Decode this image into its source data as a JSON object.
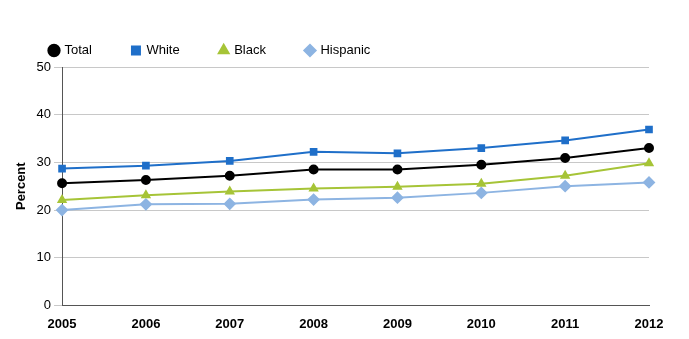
{
  "chart_data": {
    "type": "line",
    "y_label": "Percent",
    "categories": [
      "2005",
      "2006",
      "2007",
      "2008",
      "2009",
      "2010",
      "2011",
      "2012"
    ],
    "series": [
      {
        "name": "Total",
        "color": "#000000",
        "marker": "circle",
        "values": [
          25.6,
          26.3,
          27.2,
          28.5,
          28.5,
          29.5,
          30.9,
          33.0
        ]
      },
      {
        "name": "White",
        "color": "#1f6fc9",
        "marker": "square",
        "values": [
          28.7,
          29.3,
          30.3,
          32.2,
          31.9,
          33.0,
          34.6,
          36.9
        ]
      },
      {
        "name": "Black",
        "color": "#a6c437",
        "marker": "triangle",
        "values": [
          22.1,
          23.1,
          23.9,
          24.5,
          24.9,
          25.5,
          27.2,
          29.8
        ]
      },
      {
        "name": "Hispanic",
        "color": "#8db4e2",
        "marker": "diamond",
        "values": [
          20.0,
          21.2,
          21.3,
          22.2,
          22.6,
          23.6,
          25.0,
          25.8
        ]
      }
    ],
    "ylim": [
      0,
      50
    ],
    "yticks": [
      0,
      10,
      20,
      30,
      40,
      50
    ],
    "grid": true,
    "legend": "top-left"
  }
}
